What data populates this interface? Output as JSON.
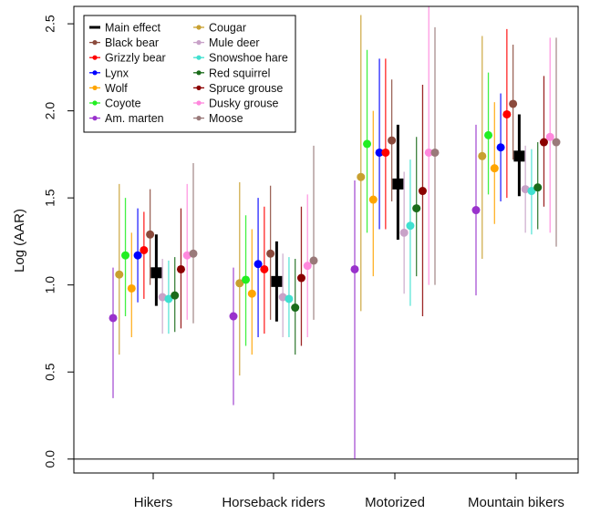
{
  "chart_data": {
    "type": "scatter",
    "title": "",
    "xlabel": "",
    "ylabel": "Log (AAR)",
    "ylim": [
      -0.08,
      2.6
    ],
    "yticks": [
      0.0,
      0.5,
      1.0,
      1.5,
      2.0,
      2.5
    ],
    "ytick_labels": [
      "0.0",
      "0.5",
      "1.0",
      "1.5",
      "2.0",
      "2.5"
    ],
    "reference_line": 0.0,
    "categories": [
      "Hikers",
      "Horseback riders",
      "Motorized",
      "Mountain bikers"
    ],
    "legend": {
      "placement": "top-left",
      "entries": [
        {
          "label": "Main effect",
          "color": "#000000"
        },
        {
          "label": "Black bear",
          "color": "#8B4A3C"
        },
        {
          "label": "Grizzly bear",
          "color": "#FF0000"
        },
        {
          "label": "Lynx",
          "color": "#0000FF"
        },
        {
          "label": "Wolf",
          "color": "#FFA500"
        },
        {
          "label": "Coyote",
          "color": "#22EE22"
        },
        {
          "label": "Am. marten",
          "color": "#9932CC"
        },
        {
          "label": "Cougar",
          "color": "#C8A030"
        },
        {
          "label": "Mule deer",
          "color": "#C8A2C8"
        },
        {
          "label": "Snowshoe hare",
          "color": "#40E0D0"
        },
        {
          "label": "Red squirrel",
          "color": "#1A6B1A"
        },
        {
          "label": "Spruce grouse",
          "color": "#8B0000"
        },
        {
          "label": "Dusky grouse",
          "color": "#FF88DD"
        },
        {
          "label": "Moose",
          "color": "#9A7A7A"
        }
      ]
    },
    "series": [
      {
        "name": "Am. marten",
        "color": "#9932CC",
        "values": [
          {
            "y": 0.81,
            "lo": 0.35,
            "hi": 1.1
          },
          {
            "y": 0.82,
            "lo": 0.31,
            "hi": 1.1
          },
          {
            "y": 1.09,
            "lo": 0.0,
            "hi": 1.6
          },
          {
            "y": 1.43,
            "lo": 0.94,
            "hi": 1.92
          }
        ]
      },
      {
        "name": "Cougar",
        "color": "#C8A030",
        "values": [
          {
            "y": 1.06,
            "lo": 0.6,
            "hi": 1.58
          },
          {
            "y": 1.01,
            "lo": 0.48,
            "hi": 1.59
          },
          {
            "y": 1.62,
            "lo": 0.85,
            "hi": 2.55
          },
          {
            "y": 1.74,
            "lo": 1.15,
            "hi": 2.43
          }
        ]
      },
      {
        "name": "Coyote",
        "color": "#22EE22",
        "values": [
          {
            "y": 1.17,
            "lo": 0.82,
            "hi": 1.5
          },
          {
            "y": 1.03,
            "lo": 0.65,
            "hi": 1.4
          },
          {
            "y": 1.81,
            "lo": 1.3,
            "hi": 2.35
          },
          {
            "y": 1.86,
            "lo": 1.52,
            "hi": 2.22
          }
        ]
      },
      {
        "name": "Wolf",
        "color": "#FFA500",
        "values": [
          {
            "y": 0.98,
            "lo": 0.7,
            "hi": 1.3
          },
          {
            "y": 0.95,
            "lo": 0.6,
            "hi": 1.32
          },
          {
            "y": 1.49,
            "lo": 1.05,
            "hi": 2.0
          },
          {
            "y": 1.67,
            "lo": 1.35,
            "hi": 2.05
          }
        ]
      },
      {
        "name": "Lynx",
        "color": "#0000FF",
        "values": [
          {
            "y": 1.17,
            "lo": 0.9,
            "hi": 1.44
          },
          {
            "y": 1.12,
            "lo": 0.7,
            "hi": 1.5
          },
          {
            "y": 1.76,
            "lo": 1.32,
            "hi": 2.3
          },
          {
            "y": 1.79,
            "lo": 1.48,
            "hi": 2.1
          }
        ]
      },
      {
        "name": "Grizzly bear",
        "color": "#FF0000",
        "values": [
          {
            "y": 1.2,
            "lo": 0.92,
            "hi": 1.42
          },
          {
            "y": 1.09,
            "lo": 0.72,
            "hi": 1.45
          },
          {
            "y": 1.76,
            "lo": 1.32,
            "hi": 2.3
          },
          {
            "y": 1.98,
            "lo": 1.5,
            "hi": 2.47
          }
        ]
      },
      {
        "name": "Black bear",
        "color": "#8B4A3C",
        "values": [
          {
            "y": 1.29,
            "lo": 1.0,
            "hi": 1.55
          },
          {
            "y": 1.18,
            "lo": 0.8,
            "hi": 1.57
          },
          {
            "y": 1.83,
            "lo": 1.48,
            "hi": 2.18
          },
          {
            "y": 2.04,
            "lo": 1.72,
            "hi": 2.38
          }
        ]
      },
      {
        "name": "Main effect",
        "color": "#000000",
        "main": true,
        "values": [
          {
            "y": 1.07,
            "lo": 0.88,
            "hi": 1.29
          },
          {
            "y": 1.02,
            "lo": 0.79,
            "hi": 1.25
          },
          {
            "y": 1.58,
            "lo": 1.26,
            "hi": 1.92
          },
          {
            "y": 1.74,
            "lo": 1.51,
            "hi": 1.98
          }
        ]
      },
      {
        "name": "Mule deer",
        "color": "#C8A2C8",
        "values": [
          {
            "y": 0.93,
            "lo": 0.72,
            "hi": 1.15
          },
          {
            "y": 0.93,
            "lo": 0.7,
            "hi": 1.18
          },
          {
            "y": 1.3,
            "lo": 0.95,
            "hi": 1.65
          },
          {
            "y": 1.55,
            "lo": 1.3,
            "hi": 1.8
          }
        ]
      },
      {
        "name": "Snowshoe hare",
        "color": "#40E0D0",
        "values": [
          {
            "y": 0.92,
            "lo": 0.72,
            "hi": 1.14
          },
          {
            "y": 0.92,
            "lo": 0.7,
            "hi": 1.16
          },
          {
            "y": 1.34,
            "lo": 0.88,
            "hi": 1.72
          },
          {
            "y": 1.54,
            "lo": 1.29,
            "hi": 1.78
          }
        ]
      },
      {
        "name": "Red squirrel",
        "color": "#1A6B1A",
        "values": [
          {
            "y": 0.94,
            "lo": 0.73,
            "hi": 1.16
          },
          {
            "y": 0.87,
            "lo": 0.6,
            "hi": 1.15
          },
          {
            "y": 1.44,
            "lo": 1.05,
            "hi": 1.85
          },
          {
            "y": 1.56,
            "lo": 1.32,
            "hi": 1.82
          }
        ]
      },
      {
        "name": "Spruce grouse",
        "color": "#8B0000",
        "values": [
          {
            "y": 1.09,
            "lo": 0.75,
            "hi": 1.44
          },
          {
            "y": 1.04,
            "lo": 0.65,
            "hi": 1.45
          },
          {
            "y": 1.54,
            "lo": 0.82,
            "hi": 2.15
          },
          {
            "y": 1.82,
            "lo": 1.45,
            "hi": 2.2
          }
        ]
      },
      {
        "name": "Dusky grouse",
        "color": "#FF88DD",
        "values": [
          {
            "y": 1.17,
            "lo": 0.8,
            "hi": 1.58
          },
          {
            "y": 1.11,
            "lo": 0.7,
            "hi": 1.52
          },
          {
            "y": 1.76,
            "lo": 1.0,
            "hi": 2.6
          },
          {
            "y": 1.85,
            "lo": 1.3,
            "hi": 2.42
          }
        ]
      },
      {
        "name": "Moose",
        "color": "#9A7A7A",
        "values": [
          {
            "y": 1.18,
            "lo": 0.78,
            "hi": 1.7
          },
          {
            "y": 1.14,
            "lo": 0.8,
            "hi": 1.8
          },
          {
            "y": 1.76,
            "lo": 1.0,
            "hi": 2.48
          },
          {
            "y": 1.82,
            "lo": 1.22,
            "hi": 2.42
          }
        ]
      }
    ]
  }
}
